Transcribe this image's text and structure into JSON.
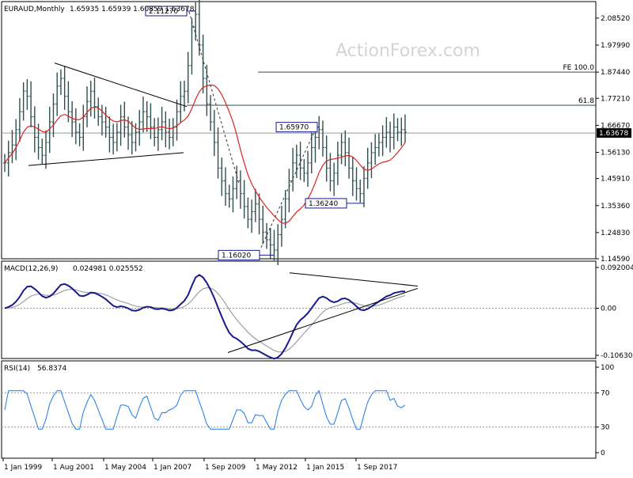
{
  "chart_data": [
    {
      "type": "candlestick",
      "title": "EURAUD,Monthly",
      "ohlc_readout": "1.65935 1.65939 1.60859 1.63678",
      "watermark": "ActionForex.com",
      "y_axis": {
        "ticks": [
          "2.08520",
          "1.97990",
          "1.87440",
          "1.77210",
          "1.66670",
          "1.56130",
          "1.45910",
          "1.35360",
          "1.24830",
          "1.14590"
        ],
        "ylim": [
          1.1459,
          2.1497
        ]
      },
      "current_price_label": "1.63678",
      "current_price": 1.63678,
      "x_ticks": [
        "1 Jan 1999",
        "1 Aug 2001",
        "1 May 2004",
        "1 Jan 2007",
        "1 Sep 2009",
        "1 May 2012",
        "1 Jan 2015",
        "1 Sep 2017"
      ],
      "annotations": [
        {
          "label": "2.11270",
          "value": 2.1127
        },
        {
          "label": "1.16020",
          "value": 1.1602
        },
        {
          "label": "1.65970",
          "value": 1.6597
        },
        {
          "label": "1.36240",
          "value": 1.3624
        }
      ],
      "levels": [
        {
          "label": "FE 100.0",
          "value": 1.8744
        },
        {
          "label": "61.8",
          "value": 1.745
        }
      ],
      "close_series": [
        1.52,
        1.56,
        1.59,
        1.65,
        1.72,
        1.8,
        1.78,
        1.7,
        1.62,
        1.58,
        1.55,
        1.6,
        1.68,
        1.75,
        1.82,
        1.85,
        1.78,
        1.72,
        1.68,
        1.64,
        1.62,
        1.7,
        1.76,
        1.8,
        1.74,
        1.7,
        1.68,
        1.66,
        1.62,
        1.6,
        1.64,
        1.7,
        1.66,
        1.63,
        1.6,
        1.64,
        1.68,
        1.72,
        1.7,
        1.66,
        1.62,
        1.65,
        1.68,
        1.64,
        1.62,
        1.66,
        1.72,
        1.78,
        1.8,
        1.9,
        2.05,
        2.1,
        1.98,
        1.85,
        1.75,
        1.68,
        1.6,
        1.5,
        1.45,
        1.4,
        1.38,
        1.42,
        1.45,
        1.4,
        1.35,
        1.3,
        1.33,
        1.36,
        1.3,
        1.25,
        1.22,
        1.2,
        1.18,
        1.24,
        1.3,
        1.38,
        1.45,
        1.52,
        1.55,
        1.5,
        1.48,
        1.52,
        1.58,
        1.62,
        1.65,
        1.58,
        1.5,
        1.45,
        1.48,
        1.55,
        1.6,
        1.56,
        1.5,
        1.45,
        1.42,
        1.4,
        1.46,
        1.52,
        1.56,
        1.58,
        1.6,
        1.62,
        1.64,
        1.62,
        1.66,
        1.64,
        1.65,
        1.64
      ],
      "indicators": [
        {
          "name": "MACD(12,26,9)",
          "readout": "0.024981 0.025552",
          "ticks": [
            "0.092004",
            "0.00",
            "-0.106308"
          ],
          "ylim": [
            -0.106308,
            0.092004
          ]
        },
        {
          "name": "RSI(14)",
          "readout": "56.8374",
          "ticks": [
            "100",
            "70",
            "30",
            "0"
          ],
          "ylim": [
            0,
            100
          ]
        }
      ]
    }
  ],
  "colors": {
    "candles": "#2f4f4f",
    "ma": "#dd2222",
    "macd": "#1a1a8c",
    "signal": "#a0a0a0",
    "rsi": "#1e78e6",
    "grid": "#777777",
    "levels": "#2f4f4f"
  }
}
